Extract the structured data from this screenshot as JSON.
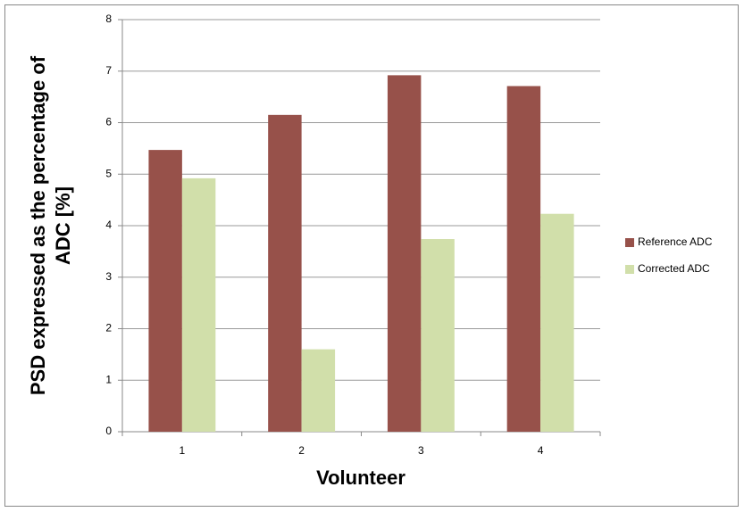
{
  "chart_data": {
    "type": "bar",
    "xlabel": "Volunteer",
    "ylabel": [
      "PSD expressed as the percentage of",
      "ADC [%]"
    ],
    "categories": [
      "1",
      "2",
      "3",
      "4"
    ],
    "series": [
      {
        "name": "Reference ADC",
        "color": "#97514a",
        "values": [
          5.47,
          6.15,
          6.92,
          6.71
        ]
      },
      {
        "name": "Corrected ADC",
        "color": "#d1dfaa",
        "values": [
          4.92,
          1.6,
          3.74,
          4.23
        ]
      }
    ],
    "ylim": [
      0,
      8
    ],
    "yticks": [
      0,
      1,
      2,
      3,
      4,
      5,
      6,
      7,
      8
    ],
    "grid": true,
    "legend": "right"
  }
}
